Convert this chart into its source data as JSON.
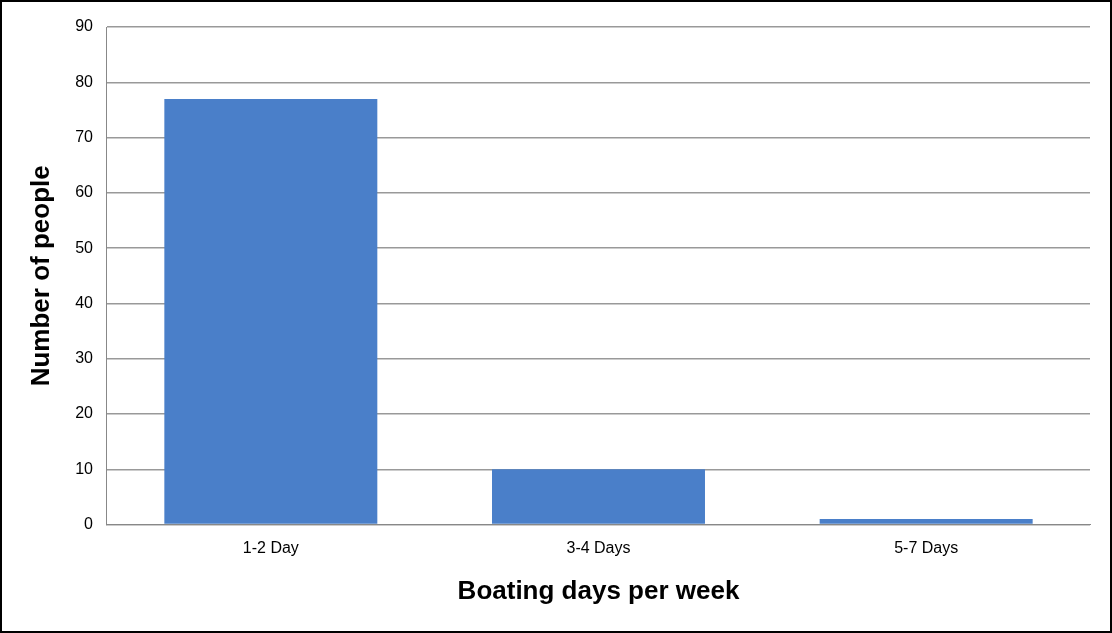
{
  "chart_data": {
    "type": "bar",
    "xlabel": "Boating days per week",
    "ylabel": "Number of people",
    "categories": [
      "1-2 Day",
      "3-4 Days",
      "5-7 Days"
    ],
    "values": [
      77,
      10,
      1
    ],
    "color": "#4a7fc9",
    "ylim": [
      0,
      90
    ],
    "yticks": [
      0,
      10,
      20,
      30,
      40,
      50,
      60,
      70,
      80,
      90
    ],
    "grid": "y"
  }
}
